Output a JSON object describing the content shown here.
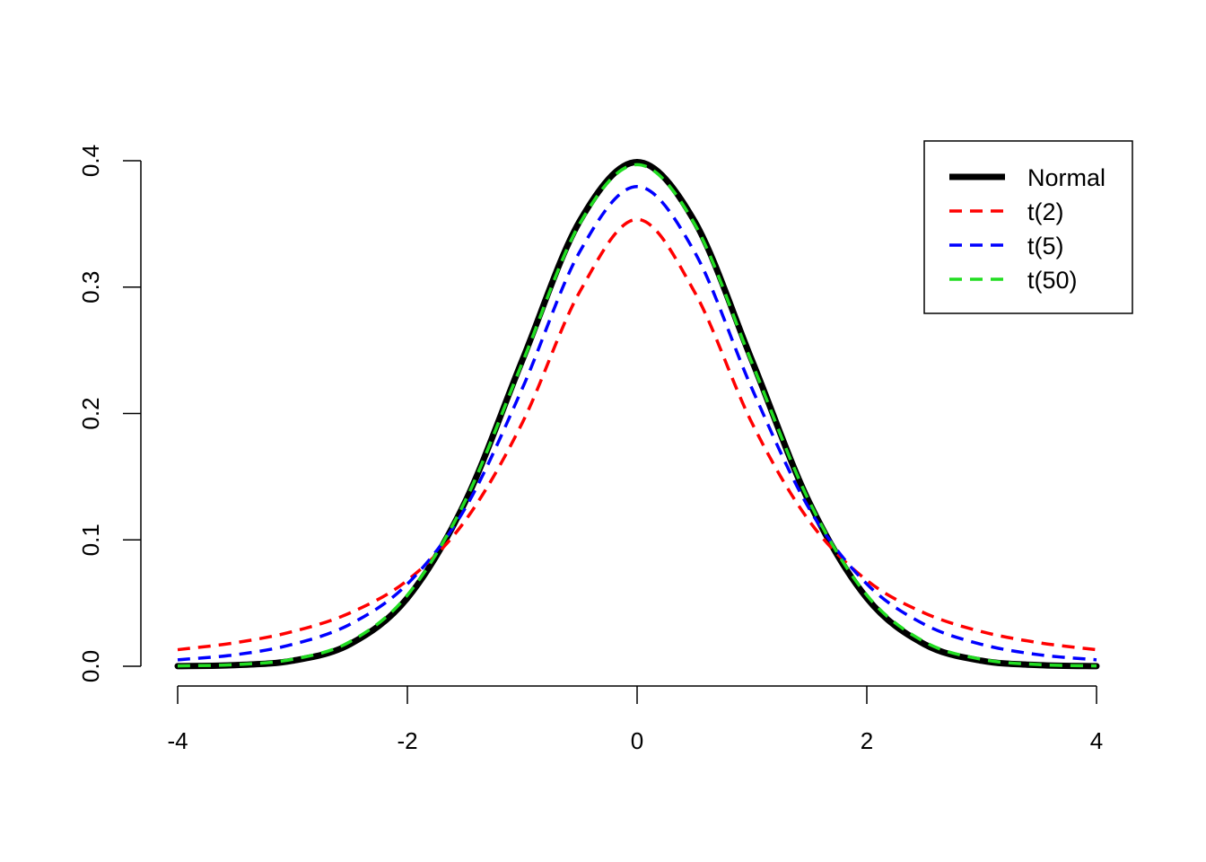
{
  "chart_data": {
    "type": "line",
    "title": "",
    "xlabel": "",
    "ylabel": "",
    "xlim": [
      -4,
      4
    ],
    "ylim": [
      0,
      0.4
    ],
    "x_ticks": [
      -4,
      -2,
      0,
      2,
      4
    ],
    "x_tick_labels": [
      "-4",
      "-2",
      "0",
      "2",
      "4"
    ],
    "y_ticks": [
      0.0,
      0.1,
      0.2,
      0.3,
      0.4
    ],
    "y_tick_labels": [
      "0.0",
      "0.1",
      "0.2",
      "0.3",
      "0.4"
    ],
    "grid": false,
    "legend_position": "top-right",
    "series": [
      {
        "name": "Normal",
        "color": "#000000",
        "style": "solid",
        "x": [
          -4,
          -3.5,
          -3,
          -2.5,
          -2,
          -1.5,
          -1,
          -0.5,
          0,
          0.5,
          1,
          1.5,
          2,
          2.5,
          3,
          3.5,
          4
        ],
        "y": [
          0.0001,
          0.0009,
          0.0044,
          0.0175,
          0.054,
          0.1295,
          0.242,
          0.3521,
          0.3989,
          0.3521,
          0.242,
          0.1295,
          0.054,
          0.0175,
          0.0044,
          0.0009,
          0.0001
        ]
      },
      {
        "name": "t(2)",
        "color": "#ff0000",
        "style": "dashed",
        "x": [
          -4,
          -3.5,
          -3,
          -2.5,
          -2,
          -1.5,
          -1,
          -0.5,
          0,
          0.5,
          1,
          1.5,
          2,
          2.5,
          3,
          3.5,
          4
        ],
        "y": [
          0.0131,
          0.0186,
          0.0274,
          0.0422,
          0.068,
          0.1148,
          0.1925,
          0.2962,
          0.3536,
          0.2962,
          0.1925,
          0.1148,
          0.068,
          0.0422,
          0.0274,
          0.0186,
          0.0131
        ]
      },
      {
        "name": "t(5)",
        "color": "#0000ff",
        "style": "dashed",
        "x": [
          -4,
          -3.5,
          -3,
          -2.5,
          -2,
          -1.5,
          -1,
          -0.5,
          0,
          0.5,
          1,
          1.5,
          2,
          2.5,
          3,
          3.5,
          4
        ],
        "y": [
          0.0051,
          0.0091,
          0.0173,
          0.0332,
          0.0651,
          0.1245,
          0.2197,
          0.3279,
          0.3796,
          0.3279,
          0.2197,
          0.1245,
          0.0651,
          0.0332,
          0.0173,
          0.0091,
          0.0051
        ]
      },
      {
        "name": "t(50)",
        "color": "#22dd22",
        "style": "dashed",
        "x": [
          -4,
          -3.5,
          -3,
          -2.5,
          -2,
          -1.5,
          -1,
          -0.5,
          0,
          0.5,
          1,
          1.5,
          2,
          2.5,
          3,
          3.5,
          4
        ],
        "y": [
          0.0003,
          0.0013,
          0.0055,
          0.0194,
          0.0563,
          0.1302,
          0.24,
          0.3501,
          0.3969,
          0.3501,
          0.24,
          0.1302,
          0.0563,
          0.0194,
          0.0055,
          0.0013,
          0.0003
        ]
      }
    ]
  }
}
